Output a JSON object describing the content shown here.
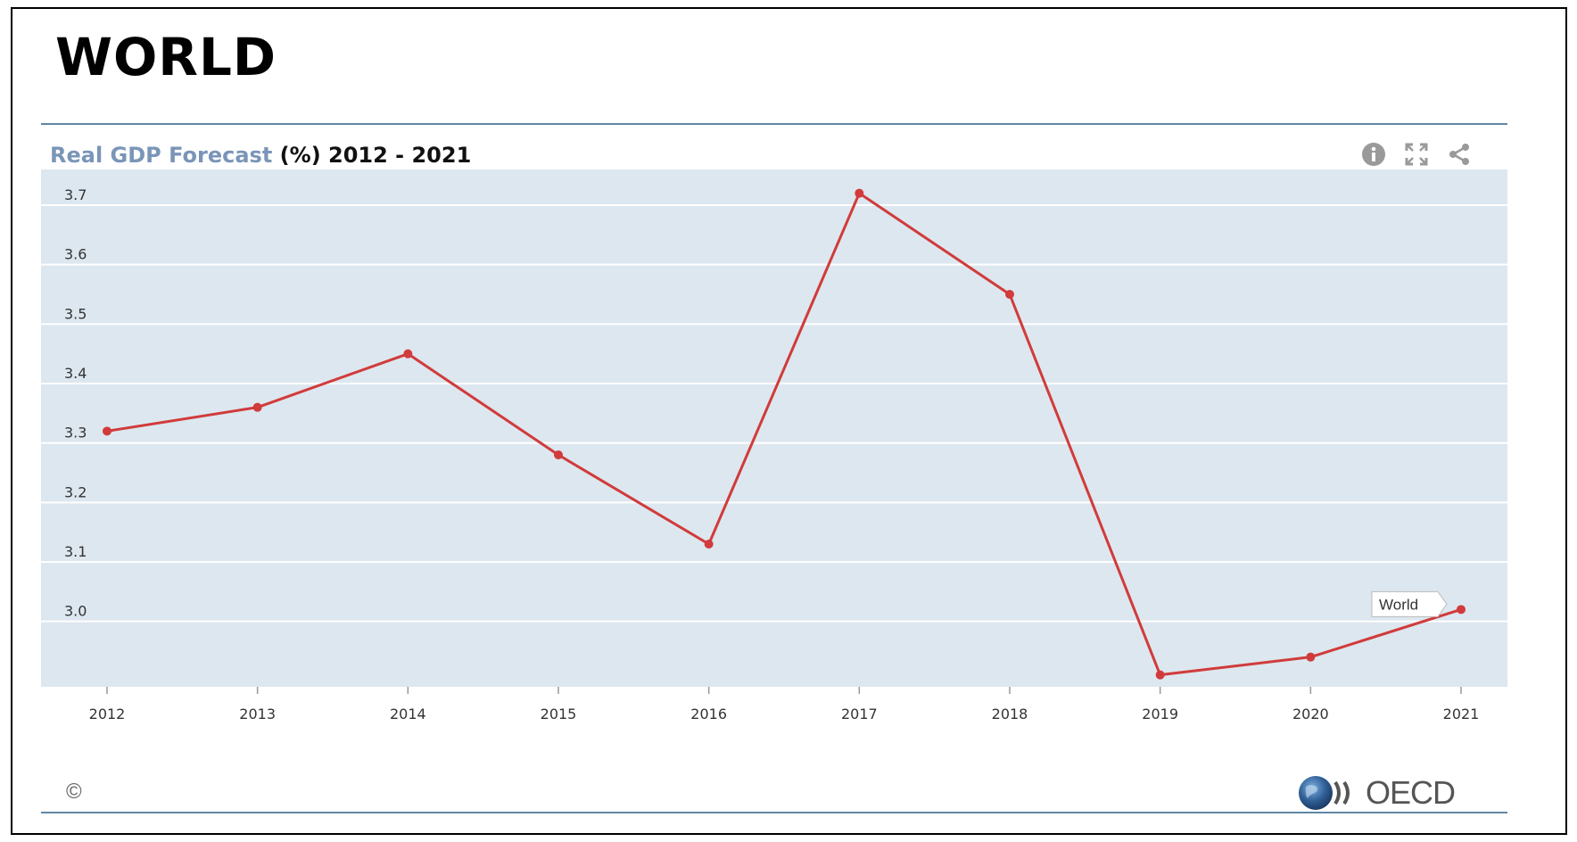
{
  "page": {
    "title": "WORLD"
  },
  "chart_title": {
    "main": "Real GDP Forecast",
    "suffix": "(%) 2012 - 2021"
  },
  "toolbar": {
    "icons": [
      "info-icon",
      "fullscreen-icon",
      "share-icon"
    ]
  },
  "footer": {
    "copyright": "©",
    "logo_text": "OECD"
  },
  "colors": {
    "line": "#d13b3b",
    "plot_bg": "#dde7ef",
    "grid": "#ffffff"
  },
  "chart_data": {
    "type": "line",
    "categories": [
      "2012",
      "2013",
      "2014",
      "2015",
      "2016",
      "2017",
      "2018",
      "2019",
      "2020",
      "2021"
    ],
    "series": [
      {
        "name": "World",
        "values": [
          3.32,
          3.36,
          3.45,
          3.28,
          3.13,
          3.72,
          3.55,
          2.91,
          2.94,
          3.02
        ]
      }
    ],
    "yticks": [
      "3.0",
      "3.1",
      "3.2",
      "3.3",
      "3.4",
      "3.5",
      "3.6",
      "3.7"
    ],
    "ylim": [
      2.89,
      3.76
    ],
    "grid": true,
    "legend": "inline-label-near-last-point"
  }
}
